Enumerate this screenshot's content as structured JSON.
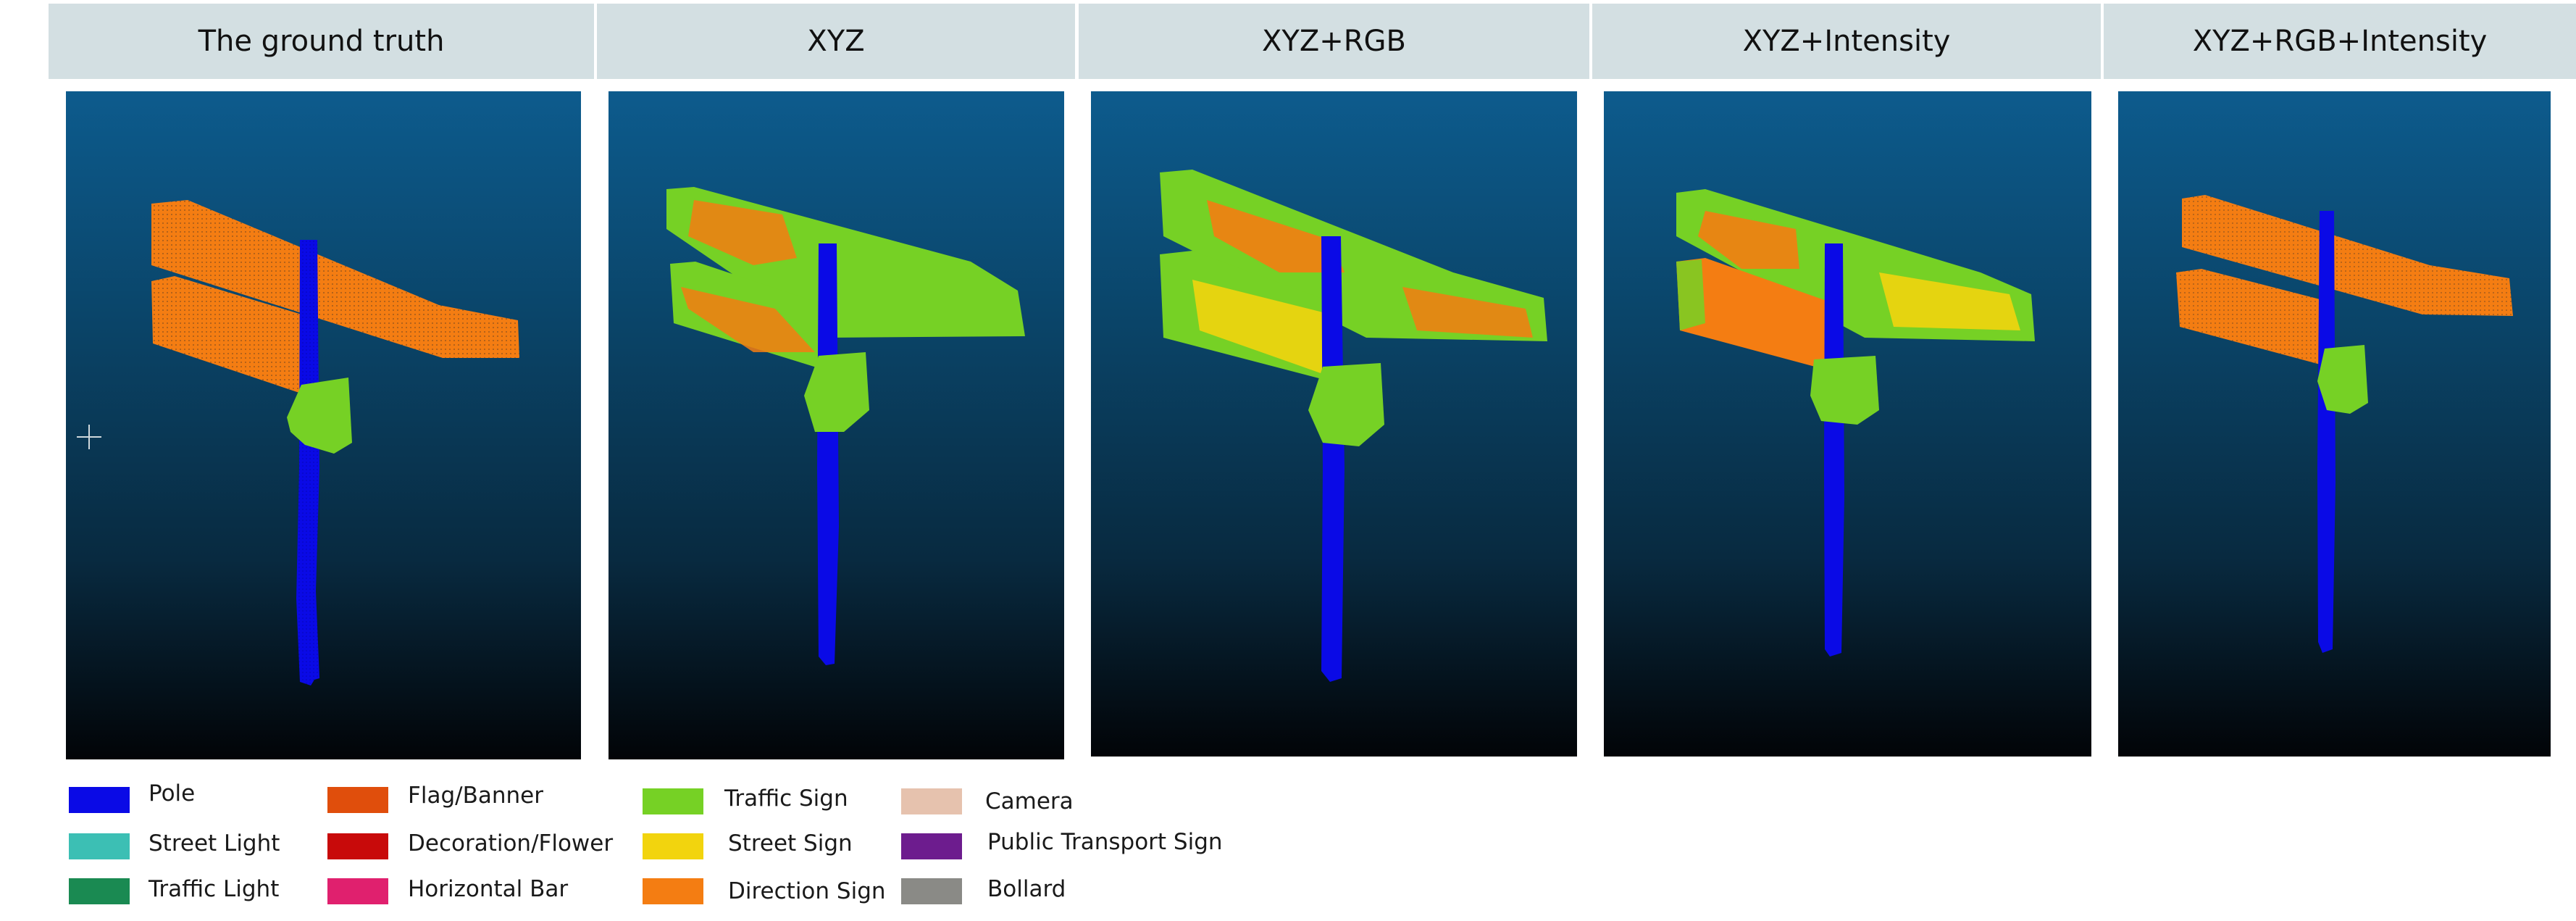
{
  "headers": [
    "The ground truth",
    "XYZ",
    "XYZ+RGB",
    "XYZ+Intensity",
    "XYZ+RGB+Intensity"
  ],
  "legend": [
    {
      "label": "Pole",
      "color": "#0a0ae6"
    },
    {
      "label": "Street Light",
      "color": "#3cbfb4"
    },
    {
      "label": "Traffic Light",
      "color": "#1a8a52"
    },
    {
      "label": "Flag/Banner",
      "color": "#e04e0c"
    },
    {
      "label": "Decoration/Flower",
      "color": "#c80a0a"
    },
    {
      "label": "Horizontal Bar",
      "color": "#e0206e"
    },
    {
      "label": "Traffic Sign",
      "color": "#76d125"
    },
    {
      "label": "Street Sign",
      "color": "#f2d40e"
    },
    {
      "label": "Direction Sign",
      "color": "#f47d12"
    },
    {
      "label": "Camera",
      "color": "#e6c2ae"
    },
    {
      "label": "Public Transport Sign",
      "color": "#6d1c8e"
    },
    {
      "label": "Bollard",
      "color": "#8a8a86"
    }
  ]
}
